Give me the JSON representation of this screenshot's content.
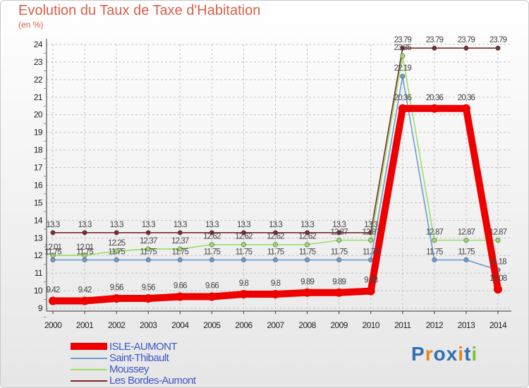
{
  "chart_data": {
    "type": "line",
    "title": "Evolution du Taux de Taxe d'Habitation",
    "subtitle": "(en %)",
    "x": [
      "2000",
      "2001",
      "2002",
      "2003",
      "2004",
      "2005",
      "2006",
      "2007",
      "2008",
      "2009",
      "2010",
      "2011",
      "2012",
      "2013",
      "2014"
    ],
    "ylim": [
      9,
      24
    ],
    "yticks": [
      "9",
      "10",
      "11",
      "12",
      "13",
      "14",
      "15",
      "16",
      "17",
      "18",
      "19",
      "20",
      "21",
      "22",
      "23",
      "24"
    ],
    "grid": true,
    "legend_position": "bottom-left",
    "series": [
      {
        "name": "ISLE-AUMONT",
        "color": "#ee0000",
        "values": [
          9.42,
          9.42,
          9.56,
          9.56,
          9.66,
          9.66,
          9.8,
          9.8,
          9.89,
          9.89,
          9.98,
          20.36,
          20.36,
          20.36,
          10.08
        ],
        "labels": [
          "9.42",
          "9.42",
          "9.56",
          "9.56",
          "9.66",
          "9.66",
          "9.8",
          "9.8",
          "9.89",
          "9.89",
          "9.98",
          "20.36",
          "20.36",
          "20.36",
          "10.08"
        ]
      },
      {
        "name": "Saint-Thibault",
        "color": "#6b9bd1",
        "values": [
          11.75,
          11.75,
          11.75,
          11.75,
          11.75,
          11.75,
          11.75,
          11.75,
          11.75,
          11.75,
          11.75,
          22.19,
          11.75,
          11.75,
          11.18
        ],
        "labels": [
          "11.75",
          "11.75",
          "11.75",
          "11.75",
          "11.75",
          "11.75",
          "11.75",
          "11.75",
          "11.75",
          "11.75",
          "11.75",
          "22.19",
          "11.75",
          "11.75",
          "11.18"
        ]
      },
      {
        "name": "Moussey",
        "color": "#99dd66",
        "values": [
          12.01,
          12.01,
          12.25,
          12.37,
          12.37,
          12.62,
          12.62,
          12.62,
          12.62,
          12.87,
          12.87,
          23.35,
          12.87,
          12.87,
          12.87
        ],
        "labels": [
          "12.01",
          "12.01",
          "12.25",
          "12.37",
          "12.37",
          "12.62",
          "12.62",
          "12.62",
          "12.62",
          "12.87",
          "12.87",
          "23.35",
          "12.87",
          "12.87",
          "12.87"
        ]
      },
      {
        "name": "Les Bordes-Aumont",
        "color": "#7a2a2a",
        "values": [
          13.3,
          13.3,
          13.3,
          13.3,
          13.3,
          13.3,
          13.3,
          13.3,
          13.3,
          13.3,
          13.3,
          23.79,
          23.79,
          23.79,
          23.79
        ],
        "labels": [
          "13.3",
          "13.3",
          "13.3",
          "13.3",
          "13.3",
          "13.3",
          "13.3",
          "13.3",
          "13.3",
          "13.3",
          "13.3",
          "23.79",
          "23.79",
          "23.79",
          "23.79"
        ]
      }
    ]
  },
  "brand": {
    "text": "Proxiti",
    "colors": [
      "#2f6fb5",
      "#e8861a",
      "#2f6fb5",
      "#2f6fb5",
      "#e8861a",
      "#2f6fb5",
      "#7cc23a"
    ]
  }
}
